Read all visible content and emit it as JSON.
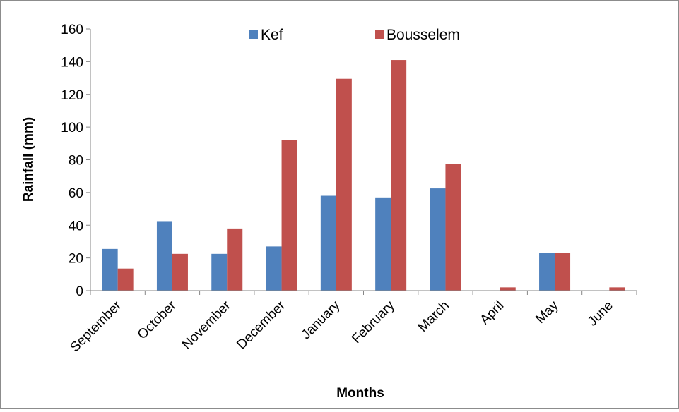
{
  "chart_data": {
    "type": "bar",
    "title": "",
    "xlabel": "Months",
    "ylabel": "Rainfall (mm)",
    "ylim": [
      0,
      160
    ],
    "yticks": [
      0,
      20,
      40,
      60,
      80,
      100,
      120,
      140,
      160
    ],
    "categories": [
      "September",
      "October",
      "November",
      "December",
      "January",
      "February",
      "March",
      "April",
      "May",
      "June"
    ],
    "series": [
      {
        "name": "Kef",
        "color": "#4f81bd",
        "values": [
          25.5,
          42.5,
          22.5,
          27,
          58,
          57,
          62.5,
          0,
          23,
          0
        ]
      },
      {
        "name": "Bousselem",
        "color": "#c0504d",
        "values": [
          13.5,
          22.5,
          38,
          92,
          129.5,
          141,
          77.5,
          2,
          23,
          2
        ]
      }
    ],
    "legend_position": "top-center",
    "grid": false
  }
}
